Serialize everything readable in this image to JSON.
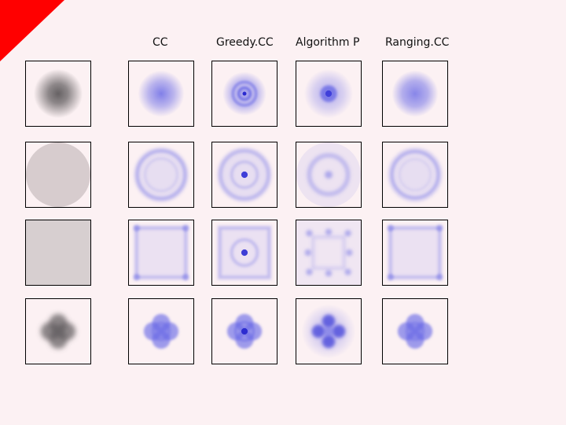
{
  "columns": [
    {
      "label": ""
    },
    {
      "label": "CC"
    },
    {
      "label": "Greedy.CC"
    },
    {
      "label": "Algorithm P"
    },
    {
      "label": "Ranging.CC"
    }
  ],
  "rows": [
    {
      "shape": "gaussian-blob"
    },
    {
      "shape": "disk"
    },
    {
      "shape": "square"
    },
    {
      "shape": "four-lobe"
    }
  ],
  "colors": {
    "background": "#FCF1F3",
    "corner": "#FF0000",
    "source": "#5E5A5C",
    "result": "#6B6BE6"
  }
}
